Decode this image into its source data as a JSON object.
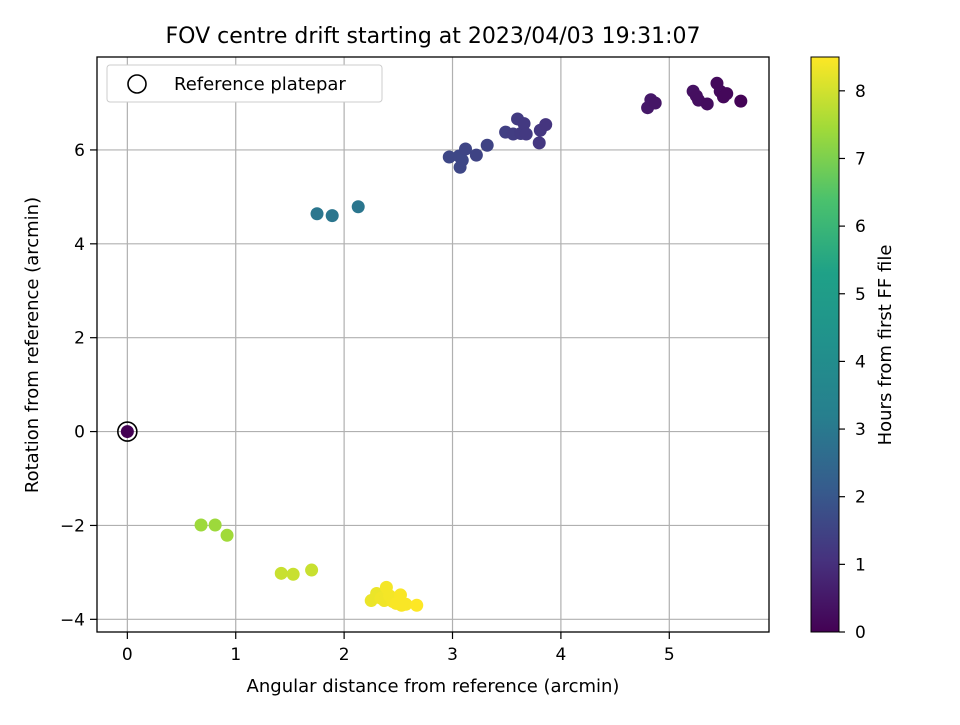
{
  "chart_data": {
    "type": "scatter",
    "title": "FOV centre drift starting at 2023/04/03 19:31:07",
    "xlabel": "Angular distance from reference (arcmin)",
    "ylabel": "Rotation from reference (arcmin)",
    "xlim": [
      -0.28,
      5.92
    ],
    "ylim": [
      -4.27,
      7.98
    ],
    "x_ticks": [
      0,
      1,
      2,
      3,
      4,
      5
    ],
    "x_tick_labels": [
      "0",
      "1",
      "2",
      "3",
      "4",
      "5"
    ],
    "y_ticks": [
      -4,
      -2,
      0,
      2,
      4,
      6
    ],
    "y_tick_labels": [
      "−4",
      "−2",
      "0",
      "2",
      "4",
      "6"
    ],
    "grid": true,
    "legend": {
      "placement": "top-left",
      "entries": [
        "Reference platepar"
      ]
    },
    "colorbar": {
      "label": "Hours from first FF file",
      "colormap": "viridis",
      "range": [
        0,
        8.5
      ],
      "ticks": [
        0,
        1,
        2,
        3,
        4,
        5,
        6,
        7,
        8
      ],
      "tick_labels": [
        "0",
        "1",
        "2",
        "3",
        "4",
        "5",
        "6",
        "7",
        "8"
      ]
    },
    "reference_point": {
      "x": 0,
      "y": 0
    },
    "points": [
      {
        "x": 0.0,
        "y": 0.0,
        "hours": 0.0
      },
      {
        "x": 4.8,
        "y": 6.9,
        "hours": 0.5
      },
      {
        "x": 4.83,
        "y": 7.07,
        "hours": 0.5
      },
      {
        "x": 4.87,
        "y": 7.0,
        "hours": 0.45
      },
      {
        "x": 5.22,
        "y": 7.25,
        "hours": 0.35
      },
      {
        "x": 5.25,
        "y": 7.15,
        "hours": 0.3
      },
      {
        "x": 5.27,
        "y": 7.06,
        "hours": 0.3
      },
      {
        "x": 5.35,
        "y": 6.98,
        "hours": 0.25
      },
      {
        "x": 5.44,
        "y": 7.42,
        "hours": 0.2
      },
      {
        "x": 5.47,
        "y": 7.25,
        "hours": 0.2
      },
      {
        "x": 5.5,
        "y": 7.13,
        "hours": 0.15
      },
      {
        "x": 5.53,
        "y": 7.2,
        "hours": 0.15
      },
      {
        "x": 5.66,
        "y": 7.04,
        "hours": 0.05
      },
      {
        "x": 2.97,
        "y": 5.85,
        "hours": 1.6
      },
      {
        "x": 3.06,
        "y": 5.87,
        "hours": 1.6
      },
      {
        "x": 3.07,
        "y": 5.63,
        "hours": 1.6
      },
      {
        "x": 3.09,
        "y": 5.78,
        "hours": 1.6
      },
      {
        "x": 3.12,
        "y": 6.02,
        "hours": 1.55
      },
      {
        "x": 3.22,
        "y": 5.89,
        "hours": 1.5
      },
      {
        "x": 3.32,
        "y": 6.1,
        "hours": 1.5
      },
      {
        "x": 3.49,
        "y": 6.38,
        "hours": 1.4
      },
      {
        "x": 3.56,
        "y": 6.34,
        "hours": 1.35
      },
      {
        "x": 3.6,
        "y": 6.66,
        "hours": 1.3
      },
      {
        "x": 3.63,
        "y": 6.35,
        "hours": 1.3
      },
      {
        "x": 3.66,
        "y": 6.56,
        "hours": 1.25
      },
      {
        "x": 3.68,
        "y": 6.34,
        "hours": 1.25
      },
      {
        "x": 3.8,
        "y": 6.15,
        "hours": 1.2
      },
      {
        "x": 3.81,
        "y": 6.42,
        "hours": 1.2
      },
      {
        "x": 3.86,
        "y": 6.54,
        "hours": 1.15
      },
      {
        "x": 1.75,
        "y": 4.64,
        "hours": 2.9
      },
      {
        "x": 1.89,
        "y": 4.6,
        "hours": 2.9
      },
      {
        "x": 2.13,
        "y": 4.79,
        "hours": 2.9
      },
      {
        "x": 0.68,
        "y": -1.99,
        "hours": 7.4
      },
      {
        "x": 0.81,
        "y": -1.99,
        "hours": 7.4
      },
      {
        "x": 0.92,
        "y": -2.21,
        "hours": 7.45
      },
      {
        "x": 1.42,
        "y": -3.02,
        "hours": 7.9
      },
      {
        "x": 1.53,
        "y": -3.04,
        "hours": 7.9
      },
      {
        "x": 1.7,
        "y": -2.95,
        "hours": 7.9
      },
      {
        "x": 2.25,
        "y": -3.6,
        "hours": 8.3
      },
      {
        "x": 2.3,
        "y": -3.45,
        "hours": 8.3
      },
      {
        "x": 2.34,
        "y": -3.55,
        "hours": 8.35
      },
      {
        "x": 2.37,
        "y": -3.6,
        "hours": 8.35
      },
      {
        "x": 2.39,
        "y": -3.32,
        "hours": 8.4
      },
      {
        "x": 2.42,
        "y": -3.5,
        "hours": 8.4
      },
      {
        "x": 2.45,
        "y": -3.62,
        "hours": 8.4
      },
      {
        "x": 2.48,
        "y": -3.66,
        "hours": 8.45
      },
      {
        "x": 2.52,
        "y": -3.48,
        "hours": 8.45
      },
      {
        "x": 2.53,
        "y": -3.7,
        "hours": 8.45
      },
      {
        "x": 2.57,
        "y": -3.68,
        "hours": 8.45
      },
      {
        "x": 2.67,
        "y": -3.7,
        "hours": 8.5
      }
    ]
  }
}
